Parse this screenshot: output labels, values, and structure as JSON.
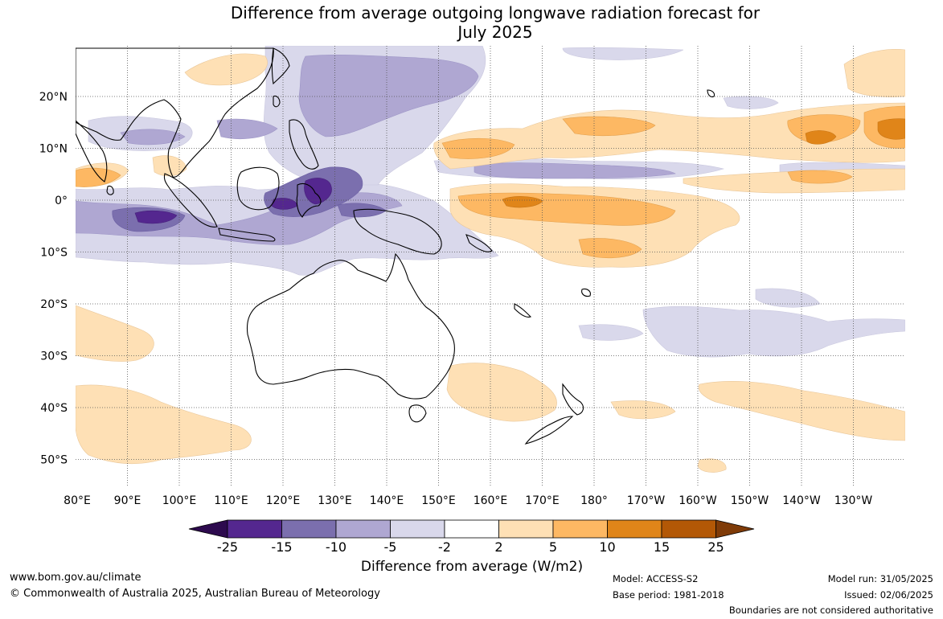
{
  "title_line1": "Difference from average outgoing longwave radiation forecast for",
  "title_line2": "July 2025",
  "lon_labels": [
    "80°E",
    "90°E",
    "100°E",
    "110°E",
    "120°E",
    "130°E",
    "140°E",
    "150°E",
    "160°E",
    "170°E",
    "180°",
    "170°W",
    "160°W",
    "150°W",
    "140°W",
    "130°W"
  ],
  "lat_labels": [
    "20°N",
    "10°N",
    "0°",
    "10°S",
    "20°S",
    "30°S",
    "40°S",
    "50°S"
  ],
  "colorbar": {
    "title": "Difference from average (W/m2)",
    "ticks": [
      "-25",
      "-15",
      "-10",
      "-5",
      "-2",
      "2",
      "5",
      "10",
      "15",
      "25"
    ],
    "colors": {
      "below_-25": "#2d0a4e",
      "-25_-15": "#54278f",
      "-15_-10": "#7b6fae",
      "-10_-5": "#afa7d2",
      "-5_-2": "#d9d8eb",
      "-2_2": "#ffffff",
      "2_5": "#fee0b5",
      "5_10": "#fdb863",
      "10_15": "#e08519",
      "15_25": "#b35806",
      "above_25": "#7f3b08"
    }
  },
  "footer": {
    "website": "www.bom.gov.au/climate",
    "copyright": "© Commonwealth of Australia 2025, Australian Bureau of Meteorology",
    "model": "Model: ACCESS-S2",
    "base_period": "Base period: 1981-2018",
    "model_run": "Model run: 31/05/2025",
    "issued": "Issued: 02/06/2025",
    "disclaimer": "Boundaries are not considered authoritative"
  }
}
